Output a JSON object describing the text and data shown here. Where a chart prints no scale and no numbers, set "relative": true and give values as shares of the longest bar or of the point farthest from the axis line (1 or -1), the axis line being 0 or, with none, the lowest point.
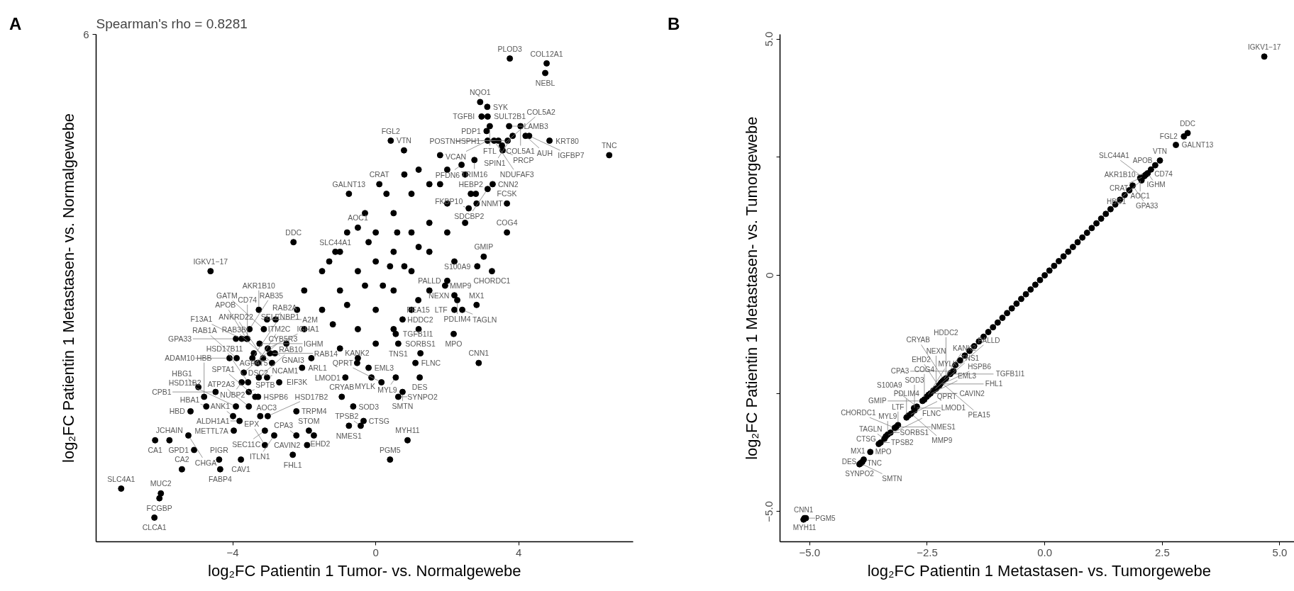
{
  "chart_data": [
    {
      "type": "scatter",
      "title": "Spearman's rho =  0.8281",
      "xlabel": "log₂FC Patientin 1 Tumor- vs. Normalgewebe",
      "ylabel": "log₂FC Patientin 1 Metastasen- vs. Normalgewebe",
      "relative": true,
      "xlim": [
        -7.82,
        7.2
      ],
      "xticks": [
        {
          "value": -4,
          "label": "−4"
        },
        0,
        4
      ],
      "grid": false,
      "marker": "circle",
      "series": [
        {
          "color": "#000000",
          "x": [
            -2,
            -1.5,
            -1,
            -0.5,
            0,
            0.5,
            1,
            1.5,
            2,
            -1,
            0,
            0.5,
            1,
            1.5,
            0,
            0.5,
            1,
            1.5,
            2,
            -1.5,
            -2,
            -0.5,
            0,
            -1,
            1,
            1.5,
            2.5,
            2,
            1.8,
            1.2,
            0.8,
            0.3,
            -0.3,
            -0.8,
            -1.3,
            -2.2,
            -2.5,
            -1.8,
            -0.5,
            0.5,
            1.2,
            2.2,
            2.5,
            2.8,
            -0.2,
            0.2,
            0.8,
            -0.8,
            1.8,
            0.6,
            -0.3,
            1.2,
            0.4,
            -1.2,
            3.75,
            4.78,
            4.74,
            3.12,
            2.92,
            3.13,
            2.96,
            3.73,
            4.05,
            3.1,
            3.19,
            3.83,
            4.19,
            4.86,
            3.69,
            4.29,
            6.53,
            3.13,
            3.31,
            2.76,
            3.55,
            3.43,
            3.53,
            0.42,
            0.79,
            0.1,
            2.4,
            3.27,
            2.66,
            2.82,
            3.13,
            2.6,
            3.67,
            3.67,
            3.02,
            3.25,
            2.84,
            2.0,
            1.94,
            2.2,
            2.28,
            2.2,
            2.82,
            2.42,
            2.18,
            1.19,
            0.75,
            0.56,
            0.63,
            -0.12,
            -0.52,
            -0.2,
            1.25,
            2.88,
            1.11,
            -0.85,
            1.23,
            0.56,
            0.16,
            0.75,
            0.63,
            -0.63,
            -0.95,
            -0.75,
            -0.34,
            -0.42,
            0.89,
            0.4,
            -1.87,
            -1.73,
            -3.29,
            -3.23,
            -1.92,
            -2.22,
            -2.32,
            -3.1,
            -2.84,
            -3.1,
            -3.77,
            -4.35,
            -4.38,
            -5.42,
            -5.08,
            -3.97,
            -3.81,
            -3.02,
            -2.22,
            -3.55,
            -3.37,
            -3.55,
            -3.99,
            -3.91,
            -4.74,
            -5.18,
            -4.8,
            -4.48,
            -4.96,
            -5.77,
            -6.17,
            -5.24,
            -7.12,
            -6.01,
            -6.05,
            -6.19,
            -2.7,
            -3.04,
            -3.27,
            -3.75,
            -3.57,
            -3.69,
            -2.06,
            -2.9,
            -3.31,
            -3.89,
            -4.09,
            -3.15,
            -3.29,
            -3.45,
            -3.59,
            -3.41,
            -2.82,
            -2.96,
            -3.02,
            -3.53,
            -3.75,
            -3.91,
            -2.8,
            -3.13,
            -3.25,
            -3.61,
            -3.04,
            -3.27,
            -4.62,
            -1.13,
            -2.3,
            -0.5,
            -0.75
          ],
          "values": [
            0.44,
            0.48,
            0.52,
            0.56,
            0.58,
            0.6,
            0.64,
            0.66,
            0.7,
            0.6,
            0.64,
            0.68,
            0.72,
            0.74,
            0.48,
            0.52,
            0.56,
            0.6,
            0.64,
            0.56,
            0.52,
            0.44,
            0.41,
            0.4,
            0.48,
            0.52,
            0.76,
            0.77,
            0.8,
            0.77,
            0.76,
            0.72,
            0.68,
            0.64,
            0.58,
            0.48,
            0.41,
            0.38,
            0.38,
            0.44,
            0.44,
            0.58,
            0.66,
            0.72,
            0.62,
            0.53,
            0.57,
            0.49,
            0.74,
            0.64,
            0.53,
            0.61,
            0.57,
            0.45,
            1.0,
            0.99,
            0.97,
            0.9,
            0.91,
            0.88,
            0.88,
            0.86,
            0.86,
            0.85,
            0.86,
            0.84,
            0.84,
            0.83,
            0.83,
            0.84,
            0.8,
            0.83,
            0.83,
            0.79,
            0.81,
            0.83,
            0.82,
            0.83,
            0.81,
            0.74,
            0.78,
            0.74,
            0.72,
            0.7,
            0.73,
            0.69,
            0.7,
            0.64,
            0.59,
            0.56,
            0.57,
            0.54,
            0.53,
            0.51,
            0.5,
            0.48,
            0.49,
            0.48,
            0.43,
            0.5,
            0.46,
            0.43,
            0.41,
            0.34,
            0.37,
            0.36,
            0.39,
            0.37,
            0.37,
            0.34,
            0.34,
            0.34,
            0.33,
            0.31,
            0.3,
            0.28,
            0.3,
            0.24,
            0.25,
            0.24,
            0.21,
            0.17,
            0.23,
            0.22,
            0.3,
            0.26,
            0.2,
            0.22,
            0.18,
            0.23,
            0.22,
            0.2,
            0.17,
            0.15,
            0.17,
            0.15,
            0.19,
            0.23,
            0.25,
            0.26,
            0.27,
            0.28,
            0.3,
            0.31,
            0.26,
            0.28,
            0.28,
            0.27,
            0.3,
            0.31,
            0.32,
            0.21,
            0.21,
            0.22,
            0.11,
            0.1,
            0.09,
            0.05,
            0.33,
            0.34,
            0.34,
            0.33,
            0.33,
            0.35,
            0.36,
            0.37,
            0.37,
            0.38,
            0.38,
            0.38,
            0.37,
            0.38,
            0.42,
            0.39,
            0.39,
            0.39,
            0.4,
            0.44,
            0.42,
            0.42,
            0.46,
            0.44,
            0.41,
            0.42,
            0.46,
            0.48,
            0.56,
            0.6,
            0.62,
            0.65,
            0.72
          ]
        }
      ],
      "annotations": [
        "A",
        "6",
        {
          "text": "PLOD3",
          "x": 3.75,
          "y": 1.0
        },
        {
          "text": "COL12A1",
          "x": 4.78,
          "y": 0.99
        },
        {
          "text": "NEBL",
          "x": 4.74,
          "y": 0.97
        },
        {
          "text": "SYK",
          "x": 3.12,
          "y": 0.9
        },
        {
          "text": "NQO1",
          "x": 2.92,
          "y": 0.91
        },
        {
          "text": "SULT2B1",
          "x": 3.13,
          "y": 0.88
        },
        {
          "text": "TGFBI",
          "x": 2.96,
          "y": 0.88
        },
        {
          "text": "LAMB3",
          "x": 3.73,
          "y": 0.86
        },
        {
          "text": "COL5A1",
          "x": 4.05,
          "y": 0.86
        },
        {
          "text": "PDP1",
          "x": 3.1,
          "y": 0.85
        },
        {
          "text": "FTL",
          "x": 3.19,
          "y": 0.86
        },
        {
          "text": "SPIN1",
          "x": 3.83,
          "y": 0.84
        },
        {
          "text": "AUH",
          "x": 4.19,
          "y": 0.84
        },
        {
          "text": "KRT80",
          "x": 4.86,
          "y": 0.83
        },
        {
          "text": "HSPH1",
          "x": 3.69,
          "y": 0.83
        },
        {
          "text": "IGFBP7",
          "x": 4.29,
          "y": 0.84
        },
        {
          "text": "TNC",
          "x": 6.53,
          "y": 0.8
        },
        {
          "text": "VCAN",
          "x": 3.13,
          "y": 0.83
        },
        {
          "text": "NDUFAF3",
          "x": 3.31,
          "y": 0.83
        },
        {
          "text": "TRIM16",
          "x": 2.76,
          "y": 0.79
        },
        {
          "text": "PRCP",
          "x": 3.55,
          "y": 0.81
        },
        {
          "text": "POSTN",
          "x": 3.43,
          "y": 0.83
        },
        {
          "text": "COL5A2",
          "x": 3.53,
          "y": 0.82
        },
        {
          "text": "FGL2",
          "x": 0.42,
          "y": 0.83
        },
        {
          "text": "VTN",
          "x": 0.79,
          "y": 0.81
        },
        {
          "text": "CRAT",
          "x": 0.1,
          "y": 0.74
        },
        {
          "text": "PFDN6",
          "x": 2.4,
          "y": 0.78
        },
        {
          "text": "CNN2",
          "x": 3.27,
          "y": 0.74
        },
        {
          "text": "HEBP2",
          "x": 2.66,
          "y": 0.72
        },
        {
          "text": "NNMT",
          "x": 2.82,
          "y": 0.7
        },
        {
          "text": "SDCBP2",
          "x": 3.13,
          "y": 0.73
        },
        {
          "text": "FKBP10",
          "x": 2.6,
          "y": 0.69
        },
        {
          "text": "FCSK",
          "x": 3.67,
          "y": 0.7
        },
        {
          "text": "COG4",
          "x": 3.67,
          "y": 0.64
        },
        {
          "text": "GMIP",
          "x": 3.02,
          "y": 0.59
        },
        {
          "text": "CHORDC1",
          "x": 3.25,
          "y": 0.56
        },
        {
          "text": "S100A9",
          "x": 2.84,
          "y": 0.57
        },
        {
          "text": "PALLD",
          "x": 2.0,
          "y": 0.54
        },
        {
          "text": "MMP9",
          "x": 1.94,
          "y": 0.53
        },
        {
          "text": "NEXN",
          "x": 2.2,
          "y": 0.51
        },
        {
          "text": "PDLIM4",
          "x": 2.28,
          "y": 0.5
        },
        {
          "text": "LTF",
          "x": 2.2,
          "y": 0.48
        },
        {
          "text": "MX1",
          "x": 2.82,
          "y": 0.49
        },
        {
          "text": "TAGLN",
          "x": 2.42,
          "y": 0.48
        },
        {
          "text": "MPO",
          "x": 2.18,
          "y": 0.43
        },
        {
          "text": "PEA15",
          "x": 1.19,
          "y": 0.5
        },
        {
          "text": "HDDC2",
          "x": 0.75,
          "y": 0.46
        },
        {
          "text": "TGFB1I1",
          "x": 0.56,
          "y": 0.43
        },
        {
          "text": "TNS1",
          "x": 0.63,
          "y": 0.41
        },
        {
          "text": "MYLK",
          "x": -0.12,
          "y": 0.34
        },
        {
          "text": "KANK2",
          "x": -0.52,
          "y": 0.37
        },
        {
          "text": "EML3",
          "x": -0.2,
          "y": 0.36
        },
        {
          "text": "SORBS1",
          "x": 1.25,
          "y": 0.39
        },
        {
          "text": "CNN1",
          "x": 2.88,
          "y": 0.37
        },
        {
          "text": "FLNC",
          "x": 1.11,
          "y": 0.37
        },
        {
          "text": "LMOD1",
          "x": -0.85,
          "y": 0.34
        },
        {
          "text": "DES",
          "x": 1.23,
          "y": 0.34
        },
        {
          "text": "MYL9",
          "x": 0.56,
          "y": 0.34
        },
        {
          "text": "QPRT",
          "x": 0.16,
          "y": 0.33
        },
        {
          "text": "SMTN",
          "x": 0.75,
          "y": 0.31
        },
        {
          "text": "SYNPO2",
          "x": 0.63,
          "y": 0.3
        },
        {
          "text": "SOD3",
          "x": -0.63,
          "y": 0.28
        },
        {
          "text": "CRYAB",
          "x": -0.95,
          "y": 0.3
        },
        {
          "text": "NMES1",
          "x": -0.75,
          "y": 0.24
        },
        {
          "text": "CTSG",
          "x": -0.34,
          "y": 0.25
        },
        {
          "text": "TPSB2",
          "x": -0.42,
          "y": 0.24
        },
        {
          "text": "MYH11",
          "x": 0.89,
          "y": 0.21
        },
        {
          "text": "PGM5",
          "x": 0.4,
          "y": 0.17
        },
        {
          "text": "STOM",
          "x": -1.87,
          "y": 0.23
        },
        {
          "text": "EHD2",
          "x": -1.73,
          "y": 0.22
        },
        {
          "text": "HSPB6",
          "x": -3.29,
          "y": 0.3
        },
        {
          "text": "AOC3",
          "x": -3.23,
          "y": 0.26
        },
        {
          "text": "CAVIN2",
          "x": -1.92,
          "y": 0.2
        },
        {
          "text": "CPA3",
          "x": -2.22,
          "y": 0.22
        },
        {
          "text": "FHL1",
          "x": -2.32,
          "y": 0.18
        },
        {
          "text": "SEC11C",
          "x": -3.1,
          "y": 0.23
        },
        {
          "text": "ITLN1",
          "x": -2.84,
          "y": 0.22
        },
        {
          "text": "EPX",
          "x": -3.1,
          "y": 0.2
        },
        {
          "text": "CAV1",
          "x": -3.77,
          "y": 0.17
        },
        {
          "text": "FABP4",
          "x": -4.35,
          "y": 0.15
        },
        {
          "text": "PIGR",
          "x": -4.38,
          "y": 0.17
        },
        {
          "text": "CA2",
          "x": -5.42,
          "y": 0.15
        },
        {
          "text": "GPD1",
          "x": -5.08,
          "y": 0.19
        },
        {
          "text": "METTL7A",
          "x": -3.97,
          "y": 0.23
        },
        {
          "text": "ALDH1A1",
          "x": -3.81,
          "y": 0.25
        },
        {
          "text": "HSD17B2",
          "x": -3.02,
          "y": 0.26
        },
        {
          "text": "TRPM4",
          "x": -2.22,
          "y": 0.27
        },
        {
          "text": "ATP2A3",
          "x": -3.55,
          "y": 0.28
        },
        {
          "text": "SPTA1",
          "x": -3.37,
          "y": 0.3
        },
        {
          "text": "SPTB",
          "x": -3.55,
          "y": 0.31
        },
        {
          "text": "ANK1",
          "x": -3.99,
          "y": 0.26
        },
        {
          "text": "HSD11B2",
          "x": -3.91,
          "y": 0.28
        },
        {
          "text": "HBA1",
          "x": -4.74,
          "y": 0.28
        },
        {
          "text": "HBD",
          "x": -5.18,
          "y": 0.27
        },
        {
          "text": "HBB",
          "x": -4.8,
          "y": 0.3
        },
        {
          "text": "CPB1",
          "x": -4.48,
          "y": 0.31
        },
        {
          "text": "HBG1",
          "x": -4.96,
          "y": 0.32
        },
        {
          "text": "JCHAIN",
          "x": -5.77,
          "y": 0.21
        },
        {
          "text": "CA1",
          "x": -6.17,
          "y": 0.21
        },
        {
          "text": "CHGA",
          "x": -5.24,
          "y": 0.22
        },
        {
          "text": "SLC4A1",
          "x": -7.12,
          "y": 0.11
        },
        {
          "text": "MUC2",
          "x": -6.01,
          "y": 0.1
        },
        {
          "text": "FCGBP",
          "x": -6.05,
          "y": 0.09
        },
        {
          "text": "CLCA1",
          "x": -6.19,
          "y": 0.05
        },
        {
          "text": "EIF3K",
          "x": -2.7,
          "y": 0.33
        },
        {
          "text": "NCAM1",
          "x": -3.04,
          "y": 0.34
        },
        {
          "text": "RAB10",
          "x": -3.27,
          "y": 0.34
        },
        {
          "text": "NUBP2",
          "x": -3.75,
          "y": 0.33
        },
        {
          "text": "HSD17B11",
          "x": -3.57,
          "y": 0.33
        },
        {
          "text": "CYB5R3",
          "x": -3.69,
          "y": 0.35
        },
        {
          "text": "ARL1",
          "x": -2.06,
          "y": 0.36
        },
        {
          "text": "RAB3B",
          "x": -2.9,
          "y": 0.37
        },
        {
          "text": "ITM2C",
          "x": -3.31,
          "y": 0.37
        },
        {
          "text": "RAB1A",
          "x": -3.89,
          "y": 0.38
        },
        {
          "text": "ADAM10",
          "x": -4.09,
          "y": 0.38
        },
        {
          "text": "ANKRD22",
          "x": -3.15,
          "y": 0.38
        },
        {
          "text": "DSC2",
          "x": -3.29,
          "y": 0.37
        },
        {
          "text": "SELENBP1",
          "x": -3.45,
          "y": 0.38
        },
        {
          "text": "CD74",
          "x": -3.59,
          "y": 0.42
        },
        {
          "text": "AGPAT5",
          "x": -3.41,
          "y": 0.39
        },
        {
          "text": "GNAI3",
          "x": -2.82,
          "y": 0.39
        },
        {
          "text": "RAB14",
          "x": -2.96,
          "y": 0.39
        },
        {
          "text": "IGHA1",
          "x": -3.02,
          "y": 0.4
        },
        {
          "text": "RAB35",
          "x": -3.53,
          "y": 0.44
        },
        {
          "text": "F13A1",
          "x": -3.75,
          "y": 0.42
        },
        {
          "text": "GPA33",
          "x": -3.91,
          "y": 0.42
        },
        {
          "text": "RAB2A",
          "x": -2.8,
          "y": 0.46
        },
        {
          "text": "GATM",
          "x": -3.13,
          "y": 0.44
        },
        {
          "text": "IGHM",
          "x": -3.25,
          "y": 0.41
        },
        {
          "text": "APOB",
          "x": -3.61,
          "y": 0.42
        },
        {
          "text": "A2M",
          "x": -3.04,
          "y": 0.46
        },
        {
          "text": "AKR1B10",
          "x": -3.27,
          "y": 0.48
        },
        {
          "text": "IGKV1−17",
          "x": -4.62,
          "y": 0.56
        },
        {
          "text": "SLC44A1",
          "x": -1.13,
          "y": 0.6
        },
        {
          "text": "DDC",
          "x": -2.3,
          "y": 0.62
        },
        {
          "text": "AOC1",
          "x": -0.5,
          "y": 0.65
        },
        {
          "text": "GALNT13",
          "x": -0.75,
          "y": 0.72
        }
      ]
    },
    {
      "type": "scatter",
      "xlabel": "log₂FC Patientin 1 Metastasen- vs. Tumorgewebe",
      "ylabel": "log₂FC Patientin 1 Metastasen- vs. Tumorgewebe",
      "xlim": [
        -5.63,
        5.4
      ],
      "ylim": [
        -5.64,
        5.1
      ],
      "xticks": [
        {
          "value": -5,
          "label": "−5.0"
        },
        {
          "value": -2.5,
          "label": "−2.5"
        },
        {
          "value": 0,
          "label": "0.0"
        },
        {
          "value": 2.5,
          "label": "2.5"
        },
        {
          "value": 5,
          "label": "5.0"
        }
      ],
      "yticks": [
        {
          "value": 5,
          "label": "5.0"
        },
        {
          "value": 2.5,
          "label": null
        },
        0,
        {
          "value": -2.5,
          "label": null
        },
        {
          "value": -5,
          "label": "−5.0"
        }
      ],
      "grid": false,
      "marker": "circle",
      "series": [
        {
          "color": "#000000",
          "x": [
            -1.9,
            -1.8,
            -1.7,
            -1.6,
            -1.5,
            -1.4,
            -1.3,
            -1.2,
            -1.1,
            -1.0,
            -0.9,
            -0.8,
            -0.7,
            -0.6,
            -0.5,
            -0.4,
            -0.3,
            -0.2,
            -0.1,
            0.0,
            0.1,
            0.2,
            0.3,
            0.4,
            0.5,
            0.6,
            0.7,
            0.8,
            0.9,
            1.0,
            1.1,
            1.2,
            1.3,
            1.4,
            1.5,
            1.6,
            1.7,
            1.8,
            4.67,
            3.04,
            2.96,
            2.79,
            2.45,
            2.35,
            2.26,
            2.19,
            2.15,
            2.03,
            2.12,
            2.08,
            2.06,
            1.87,
            -5.13,
            -5.11,
            -5.08,
            -3.94,
            -3.9,
            -3.88,
            -3.85,
            -3.92,
            -3.71,
            -3.53,
            -3.49,
            -3.41,
            -3.34,
            -3.28,
            -3.38,
            -3.16,
            -3.12,
            -3.19,
            -2.94,
            -2.9,
            -2.84,
            -2.77,
            -2.78,
            -2.72,
            -2.6,
            -2.56,
            -2.51,
            -2.47,
            -2.43,
            -2.37,
            -2.31,
            -2.26,
            -2.24,
            -2.22,
            -2.2,
            -2.17,
            -2.14,
            -2.1,
            -2.01,
            -1.99,
            -1.94
          ],
          "values": [
            -1.9,
            -1.8,
            -1.7,
            -1.6,
            -1.5,
            -1.4,
            -1.3,
            -1.2,
            -1.1,
            -1.0,
            -0.9,
            -0.8,
            -0.7,
            -0.6,
            -0.5,
            -0.4,
            -0.3,
            -0.2,
            -0.1,
            0.0,
            0.1,
            0.2,
            0.3,
            0.4,
            0.5,
            0.6,
            0.7,
            0.8,
            0.9,
            1.0,
            1.1,
            1.2,
            1.3,
            1.4,
            1.5,
            1.6,
            1.7,
            1.8,
            4.63,
            3.01,
            2.94,
            2.76,
            2.43,
            2.33,
            2.24,
            2.16,
            2.13,
            2.06,
            2.1,
            2.08,
            2.01,
            1.9,
            -5.17,
            -5.14,
            -5.14,
            -4.0,
            -3.97,
            -3.95,
            -3.9,
            -3.98,
            -3.74,
            -3.57,
            -3.54,
            -3.46,
            -3.37,
            -3.33,
            -3.41,
            -3.21,
            -3.17,
            -3.23,
            -3.01,
            -2.97,
            -2.93,
            -2.86,
            -2.81,
            -2.78,
            -2.66,
            -2.63,
            -2.57,
            -2.53,
            -2.5,
            -2.44,
            -2.4,
            -2.34,
            -2.33,
            -2.3,
            -2.27,
            -2.24,
            -2.21,
            -2.18,
            -2.09,
            -2.06,
            -2.03
          ]
        }
      ],
      "annotations": [
        "B",
        {
          "text": "IGKV1−17",
          "x": 4.67,
          "y": 4.63
        },
        {
          "text": "DDC",
          "x": 3.04,
          "y": 3.01
        },
        {
          "text": "FGL2",
          "x": 2.96,
          "y": 2.94
        },
        {
          "text": "GALNT13",
          "x": 2.79,
          "y": 2.76
        },
        {
          "text": "VTN",
          "x": 2.45,
          "y": 2.43
        },
        {
          "text": "APOB",
          "x": 2.35,
          "y": 2.33
        },
        {
          "text": "CD74",
          "x": 2.26,
          "y": 2.24
        },
        {
          "text": "IGHM",
          "x": 2.19,
          "y": 2.16
        },
        {
          "text": "AKR1B10",
          "x": 2.15,
          "y": 2.13
        },
        {
          "text": "AOC1",
          "x": 2.03,
          "y": 2.06
        },
        {
          "text": "CRAT",
          "x": 2.12,
          "y": 2.1
        },
        {
          "text": "SLC44A1",
          "x": 2.08,
          "y": 2.08
        },
        {
          "text": "HBG1",
          "x": 2.06,
          "y": 2.01
        },
        {
          "text": "GPA33",
          "x": 1.87,
          "y": 1.9
        },
        {
          "text": "CNN1",
          "x": -5.13,
          "y": -5.17
        },
        {
          "text": "MYH11",
          "x": -5.11,
          "y": -5.14
        },
        {
          "text": "PGM5",
          "x": -5.08,
          "y": -5.14
        },
        {
          "text": "SYNPO2",
          "x": -3.94,
          "y": -4.0
        },
        {
          "text": "TNC",
          "x": -3.9,
          "y": -3.97
        },
        {
          "text": "DES",
          "x": -3.88,
          "y": -3.95
        },
        {
          "text": "MX1",
          "x": -3.85,
          "y": -3.9
        },
        {
          "text": "SMTN",
          "x": -3.92,
          "y": -3.98
        },
        {
          "text": "MPO",
          "x": -3.71,
          "y": -3.74
        },
        {
          "text": "CTSG",
          "x": -3.53,
          "y": -3.57
        },
        {
          "text": "TPSB2",
          "x": -3.49,
          "y": -3.54
        },
        {
          "text": "TAGLN",
          "x": -3.41,
          "y": -3.46
        },
        {
          "text": "MYL9",
          "x": -3.34,
          "y": -3.37
        },
        {
          "text": "SORBS1",
          "x": -3.28,
          "y": -3.33
        },
        {
          "text": "FLNC",
          "x": -3.38,
          "y": -3.41
        },
        {
          "text": "NMES1",
          "x": -3.16,
          "y": -3.21
        },
        {
          "text": "LTF",
          "x": -3.12,
          "y": -3.17
        },
        {
          "text": "CHORDC1",
          "x": -3.19,
          "y": -3.23
        },
        {
          "text": "PDLIM4",
          "x": -2.94,
          "y": -3.01
        },
        {
          "text": "QPRT",
          "x": -2.9,
          "y": -2.97
        },
        {
          "text": "MMP9",
          "x": -2.84,
          "y": -2.93
        },
        {
          "text": "SOD3",
          "x": -2.77,
          "y": -2.86
        },
        {
          "text": "LMOD1",
          "x": -2.78,
          "y": -2.81
        },
        {
          "text": "S100A9",
          "x": -2.72,
          "y": -2.78
        },
        {
          "text": "GMIP",
          "x": -2.6,
          "y": -2.66
        },
        {
          "text": "COG4",
          "x": -2.56,
          "y": -2.63
        },
        {
          "text": "MYLK",
          "x": -2.51,
          "y": -2.57
        },
        {
          "text": "EML3",
          "x": -2.47,
          "y": -2.53
        },
        {
          "text": "CAVIN2",
          "x": -2.43,
          "y": -2.5
        },
        {
          "text": "TNS1",
          "x": -2.37,
          "y": -2.44
        },
        {
          "text": "NEXN",
          "x": -2.31,
          "y": -2.4
        },
        {
          "text": "EHD2",
          "x": -2.26,
          "y": -2.34
        },
        {
          "text": "HSPB6",
          "x": -2.24,
          "y": -2.33
        },
        {
          "text": "FHL1",
          "x": -2.22,
          "y": -2.3
        },
        {
          "text": "PEA15",
          "x": -2.2,
          "y": -2.27
        },
        {
          "text": "KANK2",
          "x": -2.17,
          "y": -2.24
        },
        {
          "text": "CRYAB",
          "x": -2.14,
          "y": -2.21
        },
        {
          "text": "HDDC2",
          "x": -2.1,
          "y": -2.18
        },
        {
          "text": "TGFB1I1",
          "x": -2.01,
          "y": -2.09
        },
        {
          "text": "PALLD",
          "x": -1.99,
          "y": -2.06
        },
        {
          "text": "CPA3",
          "x": -1.94,
          "y": -2.03
        }
      ]
    }
  ]
}
